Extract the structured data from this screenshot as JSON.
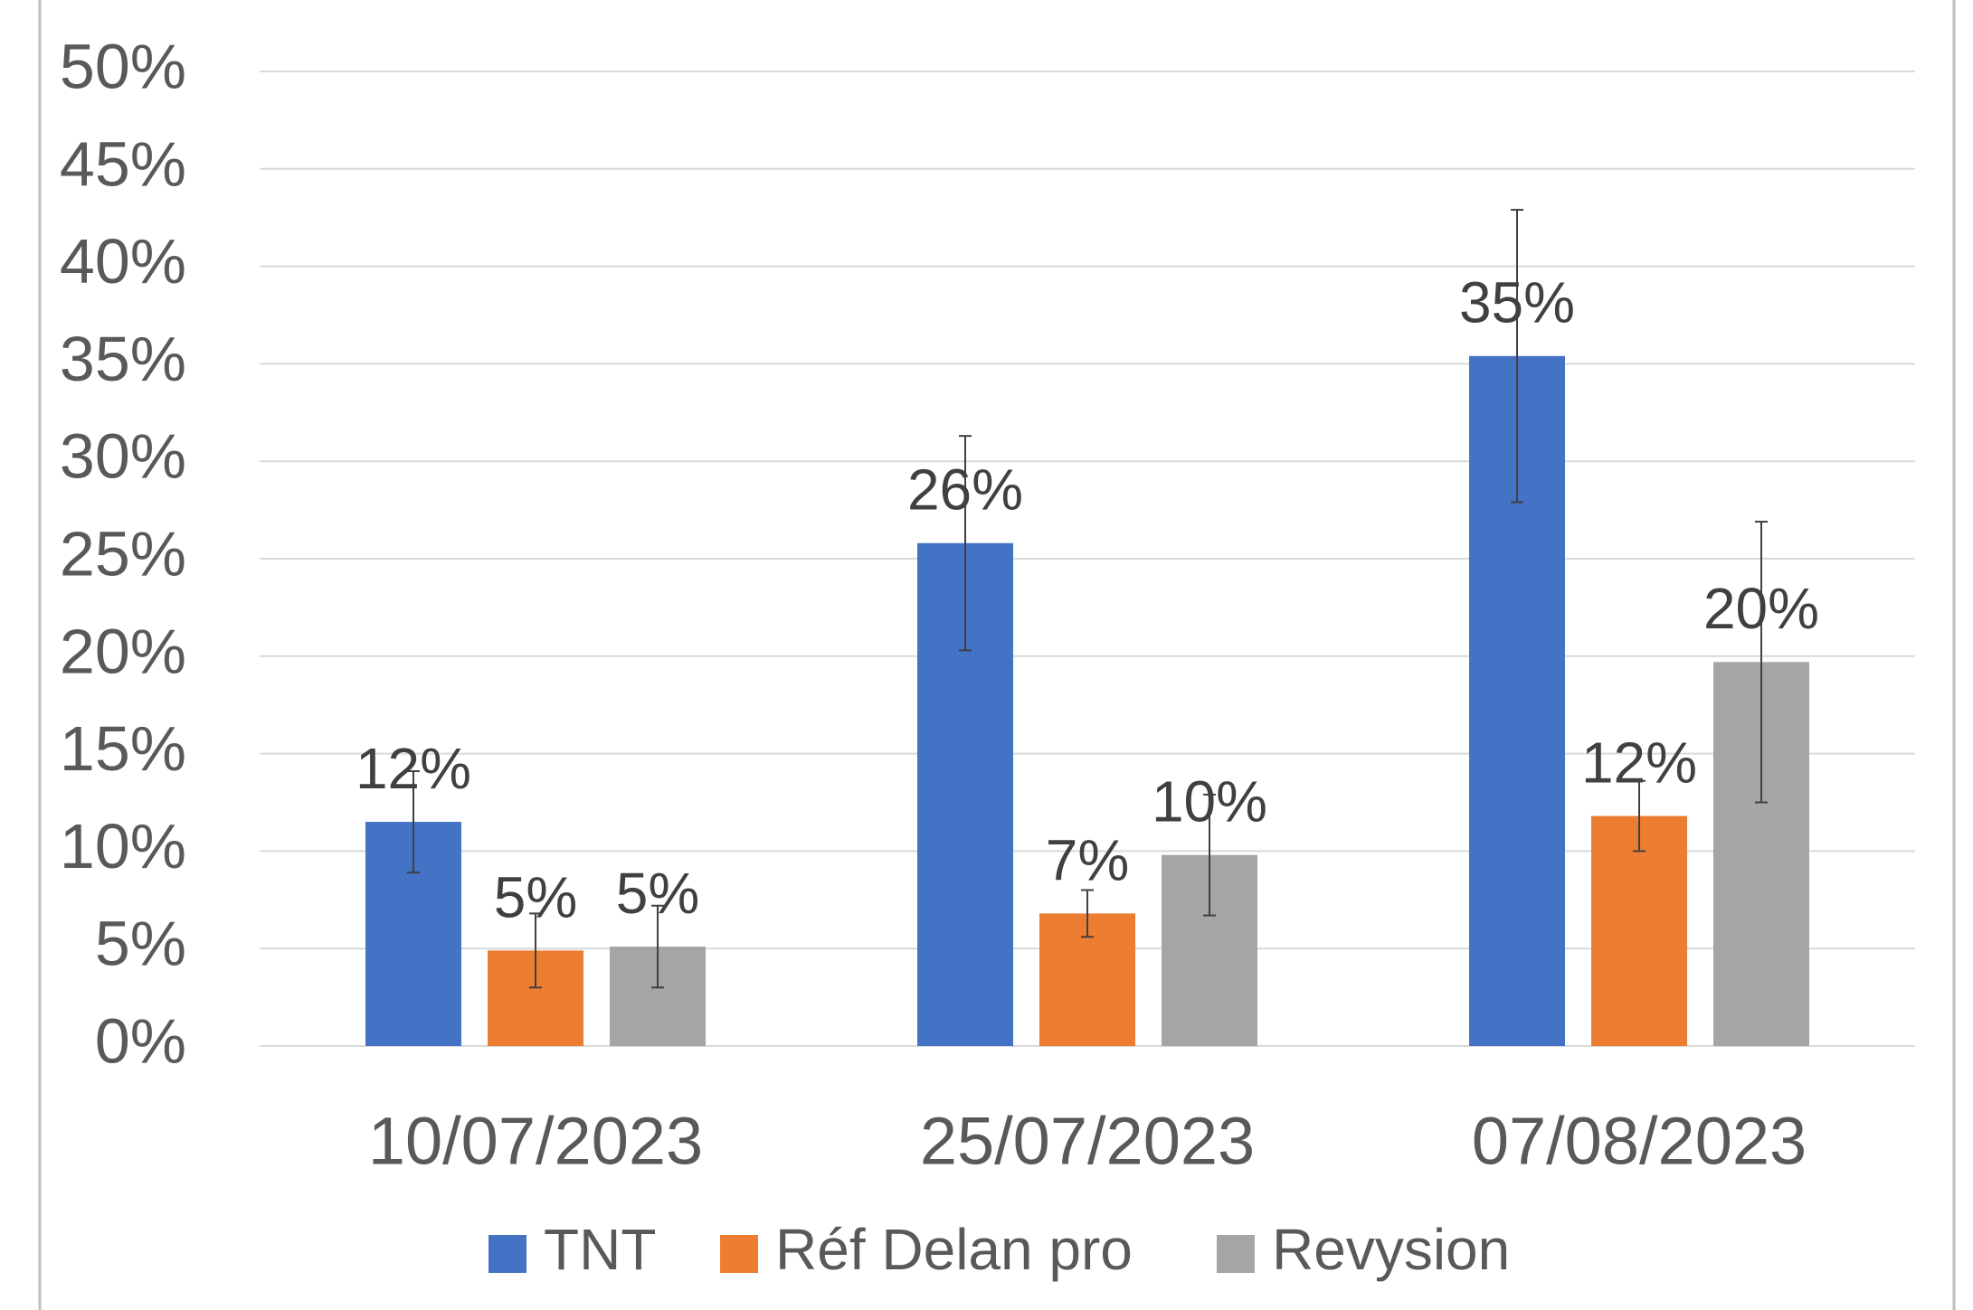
{
  "chart_data": {
    "type": "bar",
    "categories": [
      "10/07/2023",
      "25/07/2023",
      "07/08/2023"
    ],
    "series": [
      {
        "name": "TNT",
        "color": "#4472c4",
        "values": [
          11.5,
          25.8,
          35.4
        ],
        "errors": [
          2.6,
          5.5,
          7.5
        ],
        "value_labels": [
          "12%",
          "26%",
          "35%"
        ]
      },
      {
        "name": "Réf Delan pro",
        "color": "#ed7d31",
        "values": [
          4.9,
          6.8,
          11.8
        ],
        "errors": [
          1.9,
          1.2,
          1.8
        ],
        "value_labels": [
          "5%",
          "7%",
          "12%"
        ]
      },
      {
        "name": "Revysion",
        "color": "#a5a5a5",
        "values": [
          5.1,
          9.8,
          19.7
        ],
        "errors": [
          2.1,
          3.1,
          7.2
        ],
        "value_labels": [
          "5%",
          "10%",
          "20%"
        ]
      }
    ],
    "ylim": [
      0,
      50
    ],
    "yticks": [
      {
        "value": 0,
        "label": "0%"
      },
      {
        "value": 5,
        "label": "5%"
      },
      {
        "value": 10,
        "label": "10%"
      },
      {
        "value": 15,
        "label": "15%"
      },
      {
        "value": 20,
        "label": "20%"
      },
      {
        "value": 25,
        "label": "25%"
      },
      {
        "value": 30,
        "label": "30%"
      },
      {
        "value": 35,
        "label": "35%"
      },
      {
        "value": 40,
        "label": "40%"
      },
      {
        "value": 45,
        "label": "45%"
      },
      {
        "value": 50,
        "label": "50%"
      }
    ],
    "grid": true,
    "legend": "bottom"
  }
}
